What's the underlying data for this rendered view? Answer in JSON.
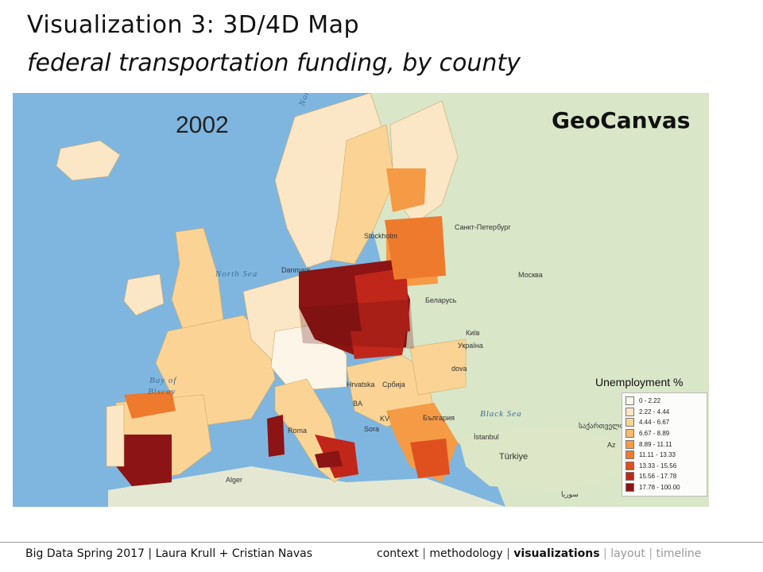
{
  "slide": {
    "title": "Visualization 3: 3D/4D Map",
    "subtitle": "federal transportation funding, by county"
  },
  "map": {
    "year": "2002",
    "brand": "GeoCanvas",
    "sea_color": "#7fb6e0",
    "land_color": "#d9e6c8",
    "labels": {
      "north_sea": "North Sea",
      "bay_of_biscay_1": "Bay of",
      "bay_of_biscay_2": "Biscay",
      "black_sea": "Black Sea",
      "norwegian": "Norwegian",
      "stockholm": "Stockholm",
      "st_petersburg": "Санкт-Петербург",
      "moscow": "Москва",
      "belarus": "Беларусь",
      "kyiv": "Київ",
      "ukraine": "Україна",
      "moldova": "dova",
      "hrvatska": "Hrvatska",
      "srbija": "Србија",
      "ba": "BA",
      "kv": "KV",
      "bulgaria": "Бългapия",
      "roma": "Roma",
      "istanbul": "İstanbul",
      "turkiye": "Türkiye",
      "algiers": "Alger",
      "danmark": "Danmark",
      "sora": "Sora",
      "georgia": "საქართველო",
      "syria": "سوريا",
      "az": "Az"
    },
    "legend": {
      "title": "Unemployment %",
      "entries": [
        {
          "label": "0 - 2.22",
          "color": "#fdf6e8"
        },
        {
          "label": "2.22 - 4.44",
          "color": "#fbe6c5"
        },
        {
          "label": "4.44 - 6.67",
          "color": "#fbd495"
        },
        {
          "label": "6.67 - 8.89",
          "color": "#f9b86b"
        },
        {
          "label": "8.89 - 11.11",
          "color": "#f59a45"
        },
        {
          "label": "11.11 - 13.33",
          "color": "#ee7a2d"
        },
        {
          "label": "13.33 - 15.56",
          "color": "#e0501e"
        },
        {
          "label": "15.56 - 17.78",
          "color": "#c1261a"
        },
        {
          "label": "17.78 - 100.00",
          "color": "#8c1414"
        }
      ]
    }
  },
  "footer": {
    "left": "Big Data Spring 2017 | Laura Krull + Cristian Navas",
    "nav": [
      {
        "label": "context",
        "state": "normal"
      },
      {
        "label": "methodology",
        "state": "normal"
      },
      {
        "label": "visualizations",
        "state": "active"
      },
      {
        "label": "layout",
        "state": "dim"
      },
      {
        "label": "timeline",
        "state": "dim"
      }
    ],
    "separator": "|"
  }
}
